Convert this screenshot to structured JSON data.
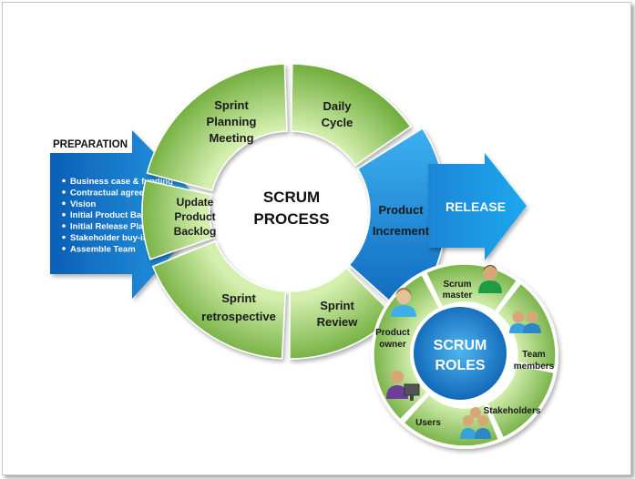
{
  "preparation": {
    "title": "PREPARATION",
    "items": [
      "Business case & funding",
      "Contractual agreement",
      "Vision",
      "Initial Product Backlog",
      "Initial Release Plan",
      "Stakeholder buy-in",
      "Assemble Team"
    ]
  },
  "process": {
    "center": [
      "SCRUM",
      "PROCESS"
    ],
    "segments": {
      "sprint_planning": [
        "Sprint",
        "Planning",
        "Meeting"
      ],
      "daily_cycle": [
        "Daily",
        "Cycle"
      ],
      "product_increment": [
        "Product",
        "Increment"
      ],
      "sprint_review": [
        "Sprint",
        "Review"
      ],
      "sprint_retrospective": [
        "Sprint",
        "retrospective"
      ],
      "update_backlog": [
        "Update",
        "Product",
        "Backlog"
      ]
    }
  },
  "release": {
    "label": "RELEASE"
  },
  "roles": {
    "center": [
      "SCRUM",
      "ROLES"
    ],
    "items": {
      "scrum_master": [
        "Scrum",
        "master"
      ],
      "team_members": [
        "Team",
        "members"
      ],
      "stakeholders": [
        "Stakeholders"
      ],
      "users": [
        "Users"
      ],
      "product_owner": [
        "Product",
        "owner"
      ]
    }
  },
  "colors": {
    "green_light": "#b9e08a",
    "green_dark": "#6fae3a",
    "blue_light": "#3aa9ec",
    "blue_dark": "#0c63b8",
    "roles_center": "#1180cf"
  }
}
